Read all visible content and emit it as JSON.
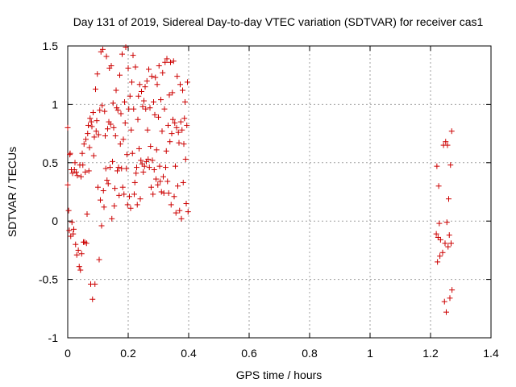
{
  "chart_data": {
    "type": "scatter",
    "title": "Day 131 of 2019, Sidereal Day-to-day VTEC variation (SDTVAR) for receiver cas1",
    "xlabel": "GPS time / hours",
    "ylabel": "SDTVAR / TECUs",
    "xlim": [
      0,
      1.4
    ],
    "ylim": [
      -1,
      1.5
    ],
    "xticks": [
      0,
      0.2,
      0.4,
      0.6,
      0.8,
      1,
      1.2,
      1.4
    ],
    "xtick_labels": [
      "0",
      "0.2",
      "0.4",
      "0.6",
      "0.8",
      "1",
      "1.2",
      "1.4"
    ],
    "yticks": [
      -1,
      -0.5,
      0,
      0.5,
      1,
      1.5
    ],
    "ytick_labels": [
      "-1",
      "-0.5",
      "0",
      "0.5",
      "1",
      "1.5"
    ],
    "grid": true,
    "marker": "+",
    "color": "#cc0000",
    "series": [
      {
        "name": "SDTVAR",
        "points": [
          [
            0.0,
            0.8
          ],
          [
            0.0,
            0.31
          ],
          [
            0.003,
            0.09
          ],
          [
            0.005,
            -0.08
          ],
          [
            0.007,
            0.57
          ],
          [
            0.008,
            0.58
          ],
          [
            0.01,
            -0.13
          ],
          [
            0.012,
            0.44
          ],
          [
            0.014,
            -0.01
          ],
          [
            0.016,
            0.41
          ],
          [
            0.018,
            -0.11
          ],
          [
            0.02,
            -0.07
          ],
          [
            0.022,
            0.44
          ],
          [
            0.024,
            0.5
          ],
          [
            0.026,
            -0.2
          ],
          [
            0.028,
            0.42
          ],
          [
            0.03,
            -0.29
          ],
          [
            0.032,
            0.39
          ],
          [
            0.035,
            -0.25
          ],
          [
            0.038,
            -0.39
          ],
          [
            0.04,
            0.48
          ],
          [
            0.042,
            -0.42
          ],
          [
            0.044,
            0.38
          ],
          [
            0.046,
            -0.28
          ],
          [
            0.048,
            0.58
          ],
          [
            0.05,
            0.48
          ],
          [
            0.052,
            -0.18
          ],
          [
            0.054,
            0.66
          ],
          [
            0.056,
            -0.18
          ],
          [
            0.058,
            0.42
          ],
          [
            0.06,
            0.7
          ],
          [
            0.062,
            -0.19
          ],
          [
            0.064,
            0.06
          ],
          [
            0.066,
            0.75
          ],
          [
            0.068,
            0.82
          ],
          [
            0.07,
            0.43
          ],
          [
            0.072,
            0.63
          ],
          [
            0.074,
            0.88
          ],
          [
            0.076,
            -0.54
          ],
          [
            0.078,
            0.85
          ],
          [
            0.08,
            0.81
          ],
          [
            0.082,
            -0.67
          ],
          [
            0.084,
            0.93
          ],
          [
            0.086,
            0.56
          ],
          [
            0.088,
            0.72
          ],
          [
            0.09,
            -0.54
          ],
          [
            0.092,
            1.13
          ],
          [
            0.094,
            0.77
          ],
          [
            0.096,
            0.86
          ],
          [
            0.098,
            1.26
          ],
          [
            0.1,
            0.29
          ],
          [
            0.102,
            0.74
          ],
          [
            0.104,
            -0.33
          ],
          [
            0.106,
            0.95
          ],
          [
            0.108,
            0.18
          ],
          [
            0.11,
            1.45
          ],
          [
            0.112,
            -0.04
          ],
          [
            0.114,
            0.99
          ],
          [
            0.116,
            1.47
          ],
          [
            0.118,
            0.26
          ],
          [
            0.12,
            0.12
          ],
          [
            0.122,
            0.94
          ],
          [
            0.124,
            0.73
          ],
          [
            0.126,
            0.45
          ],
          [
            0.128,
            1.41
          ],
          [
            0.13,
            0.35
          ],
          [
            0.132,
            0.79
          ],
          [
            0.134,
            0.32
          ],
          [
            0.136,
            0.85
          ],
          [
            0.138,
            1.31
          ],
          [
            0.14,
            0.46
          ],
          [
            0.142,
            0.83
          ],
          [
            0.144,
            1.33
          ],
          [
            0.146,
            0.02
          ],
          [
            0.148,
            0.51
          ],
          [
            0.15,
            1.01
          ],
          [
            0.152,
            0.8
          ],
          [
            0.154,
            0.13
          ],
          [
            0.156,
            0.28
          ],
          [
            0.158,
            0.73
          ],
          [
            0.16,
            1.12
          ],
          [
            0.162,
            0.97
          ],
          [
            0.164,
            0.43
          ],
          [
            0.166,
            0.95
          ],
          [
            0.168,
            0.46
          ],
          [
            0.17,
            0.22
          ],
          [
            0.172,
            1.25
          ],
          [
            0.174,
            0.66
          ],
          [
            0.176,
            0.92
          ],
          [
            0.178,
            0.45
          ],
          [
            0.18,
            1.43
          ],
          [
            0.182,
            0.29
          ],
          [
            0.184,
            0.7
          ],
          [
            0.186,
            0.23
          ],
          [
            0.188,
            1.02
          ],
          [
            0.19,
            0.84
          ],
          [
            0.192,
            1.49
          ],
          [
            0.194,
            0.45
          ],
          [
            0.196,
            0.57
          ],
          [
            0.198,
            0.14
          ],
          [
            0.2,
            1.31
          ],
          [
            0.202,
            0.96
          ],
          [
            0.204,
            0.21
          ],
          [
            0.206,
            1.07
          ],
          [
            0.208,
            0.11
          ],
          [
            0.21,
            0.78
          ],
          [
            0.212,
            1.19
          ],
          [
            0.214,
            0.58
          ],
          [
            0.216,
            1.42
          ],
          [
            0.218,
            0.96
          ],
          [
            0.22,
            0.23
          ],
          [
            0.222,
            0.33
          ],
          [
            0.224,
            1.32
          ],
          [
            0.226,
            0.41
          ],
          [
            0.228,
            0.46
          ],
          [
            0.23,
            0.14
          ],
          [
            0.232,
            0.87
          ],
          [
            0.234,
            1.07
          ],
          [
            0.236,
            0.62
          ],
          [
            0.238,
            1.17
          ],
          [
            0.24,
            0.19
          ],
          [
            0.242,
            0.52
          ],
          [
            0.244,
            1.11
          ],
          [
            0.246,
            0.49
          ],
          [
            0.248,
            0.98
          ],
          [
            0.25,
            0.42
          ],
          [
            0.252,
            1.03
          ],
          [
            0.254,
            0.47
          ],
          [
            0.256,
            1.15
          ],
          [
            0.258,
            0.96
          ],
          [
            0.26,
            0.51
          ],
          [
            0.262,
            1.2
          ],
          [
            0.264,
            0.78
          ],
          [
            0.266,
            0.53
          ],
          [
            0.268,
            1.3
          ],
          [
            0.27,
            0.46
          ],
          [
            0.272,
            0.97
          ],
          [
            0.274,
            0.64
          ],
          [
            0.276,
            0.29
          ],
          [
            0.278,
            1.24
          ],
          [
            0.28,
            0.52
          ],
          [
            0.282,
            0.23
          ],
          [
            0.284,
            1.02
          ],
          [
            0.286,
            0.44
          ],
          [
            0.288,
            0.91
          ],
          [
            0.29,
            1.23
          ],
          [
            0.292,
            0.36
          ],
          [
            0.294,
            0.61
          ],
          [
            0.296,
            1.17
          ],
          [
            0.298,
            0.31
          ],
          [
            0.3,
            0.89
          ],
          [
            0.302,
            1.33
          ],
          [
            0.304,
            0.47
          ],
          [
            0.306,
            0.34
          ],
          [
            0.308,
            1.04
          ],
          [
            0.31,
            0.25
          ],
          [
            0.312,
            0.77
          ],
          [
            0.314,
            1.27
          ],
          [
            0.316,
            0.38
          ],
          [
            0.318,
            0.24
          ],
          [
            0.32,
            0.96
          ],
          [
            0.322,
            1.36
          ],
          [
            0.324,
            0.46
          ],
          [
            0.326,
            0.6
          ],
          [
            0.328,
            1.39
          ],
          [
            0.33,
            0.34
          ],
          [
            0.332,
            0.82
          ],
          [
            0.334,
            0.24
          ],
          [
            0.336,
            1.08
          ],
          [
            0.338,
            0.68
          ],
          [
            0.34,
            1.36
          ],
          [
            0.342,
            0.14
          ],
          [
            0.344,
            0.75
          ],
          [
            0.346,
            1.1
          ],
          [
            0.348,
            0.87
          ],
          [
            0.35,
            1.37
          ],
          [
            0.352,
            0.21
          ],
          [
            0.354,
            0.84
          ],
          [
            0.356,
            0.47
          ],
          [
            0.358,
            0.07
          ],
          [
            0.36,
            0.8
          ],
          [
            0.362,
            1.24
          ],
          [
            0.364,
            0.3
          ],
          [
            0.366,
            0.76
          ],
          [
            0.368,
            0.67
          ],
          [
            0.37,
            0.09
          ],
          [
            0.372,
            1.17
          ],
          [
            0.374,
            0.85
          ],
          [
            0.376,
            0.02
          ],
          [
            0.378,
            0.78
          ],
          [
            0.38,
            1.12
          ],
          [
            0.382,
            0.33
          ],
          [
            0.384,
            0.66
          ],
          [
            0.386,
            0.88
          ],
          [
            0.388,
            1.02
          ],
          [
            0.39,
            0.53
          ],
          [
            0.392,
            0.15
          ],
          [
            0.394,
            0.82
          ],
          [
            0.396,
            1.19
          ],
          [
            0.398,
            0.08
          ],
          [
            1.219,
            -0.11
          ],
          [
            1.221,
            0.47
          ],
          [
            1.223,
            -0.35
          ],
          [
            1.225,
            -0.14
          ],
          [
            1.227,
            0.3
          ],
          [
            1.229,
            -0.02
          ],
          [
            1.231,
            -0.3
          ],
          [
            1.233,
            -0.16
          ],
          [
            1.24,
            -0.27
          ],
          [
            1.243,
            0.65
          ],
          [
            1.246,
            -0.69
          ],
          [
            1.248,
            -0.19
          ],
          [
            1.25,
            0.68
          ],
          [
            1.252,
            -0.78
          ],
          [
            1.254,
            -0.01
          ],
          [
            1.256,
            0.65
          ],
          [
            1.258,
            -0.22
          ],
          [
            1.26,
            0.19
          ],
          [
            1.262,
            -0.12
          ],
          [
            1.264,
            -0.66
          ],
          [
            1.266,
            0.48
          ],
          [
            1.268,
            -0.19
          ],
          [
            1.27,
            0.77
          ],
          [
            1.271,
            -0.59
          ]
        ]
      }
    ]
  }
}
